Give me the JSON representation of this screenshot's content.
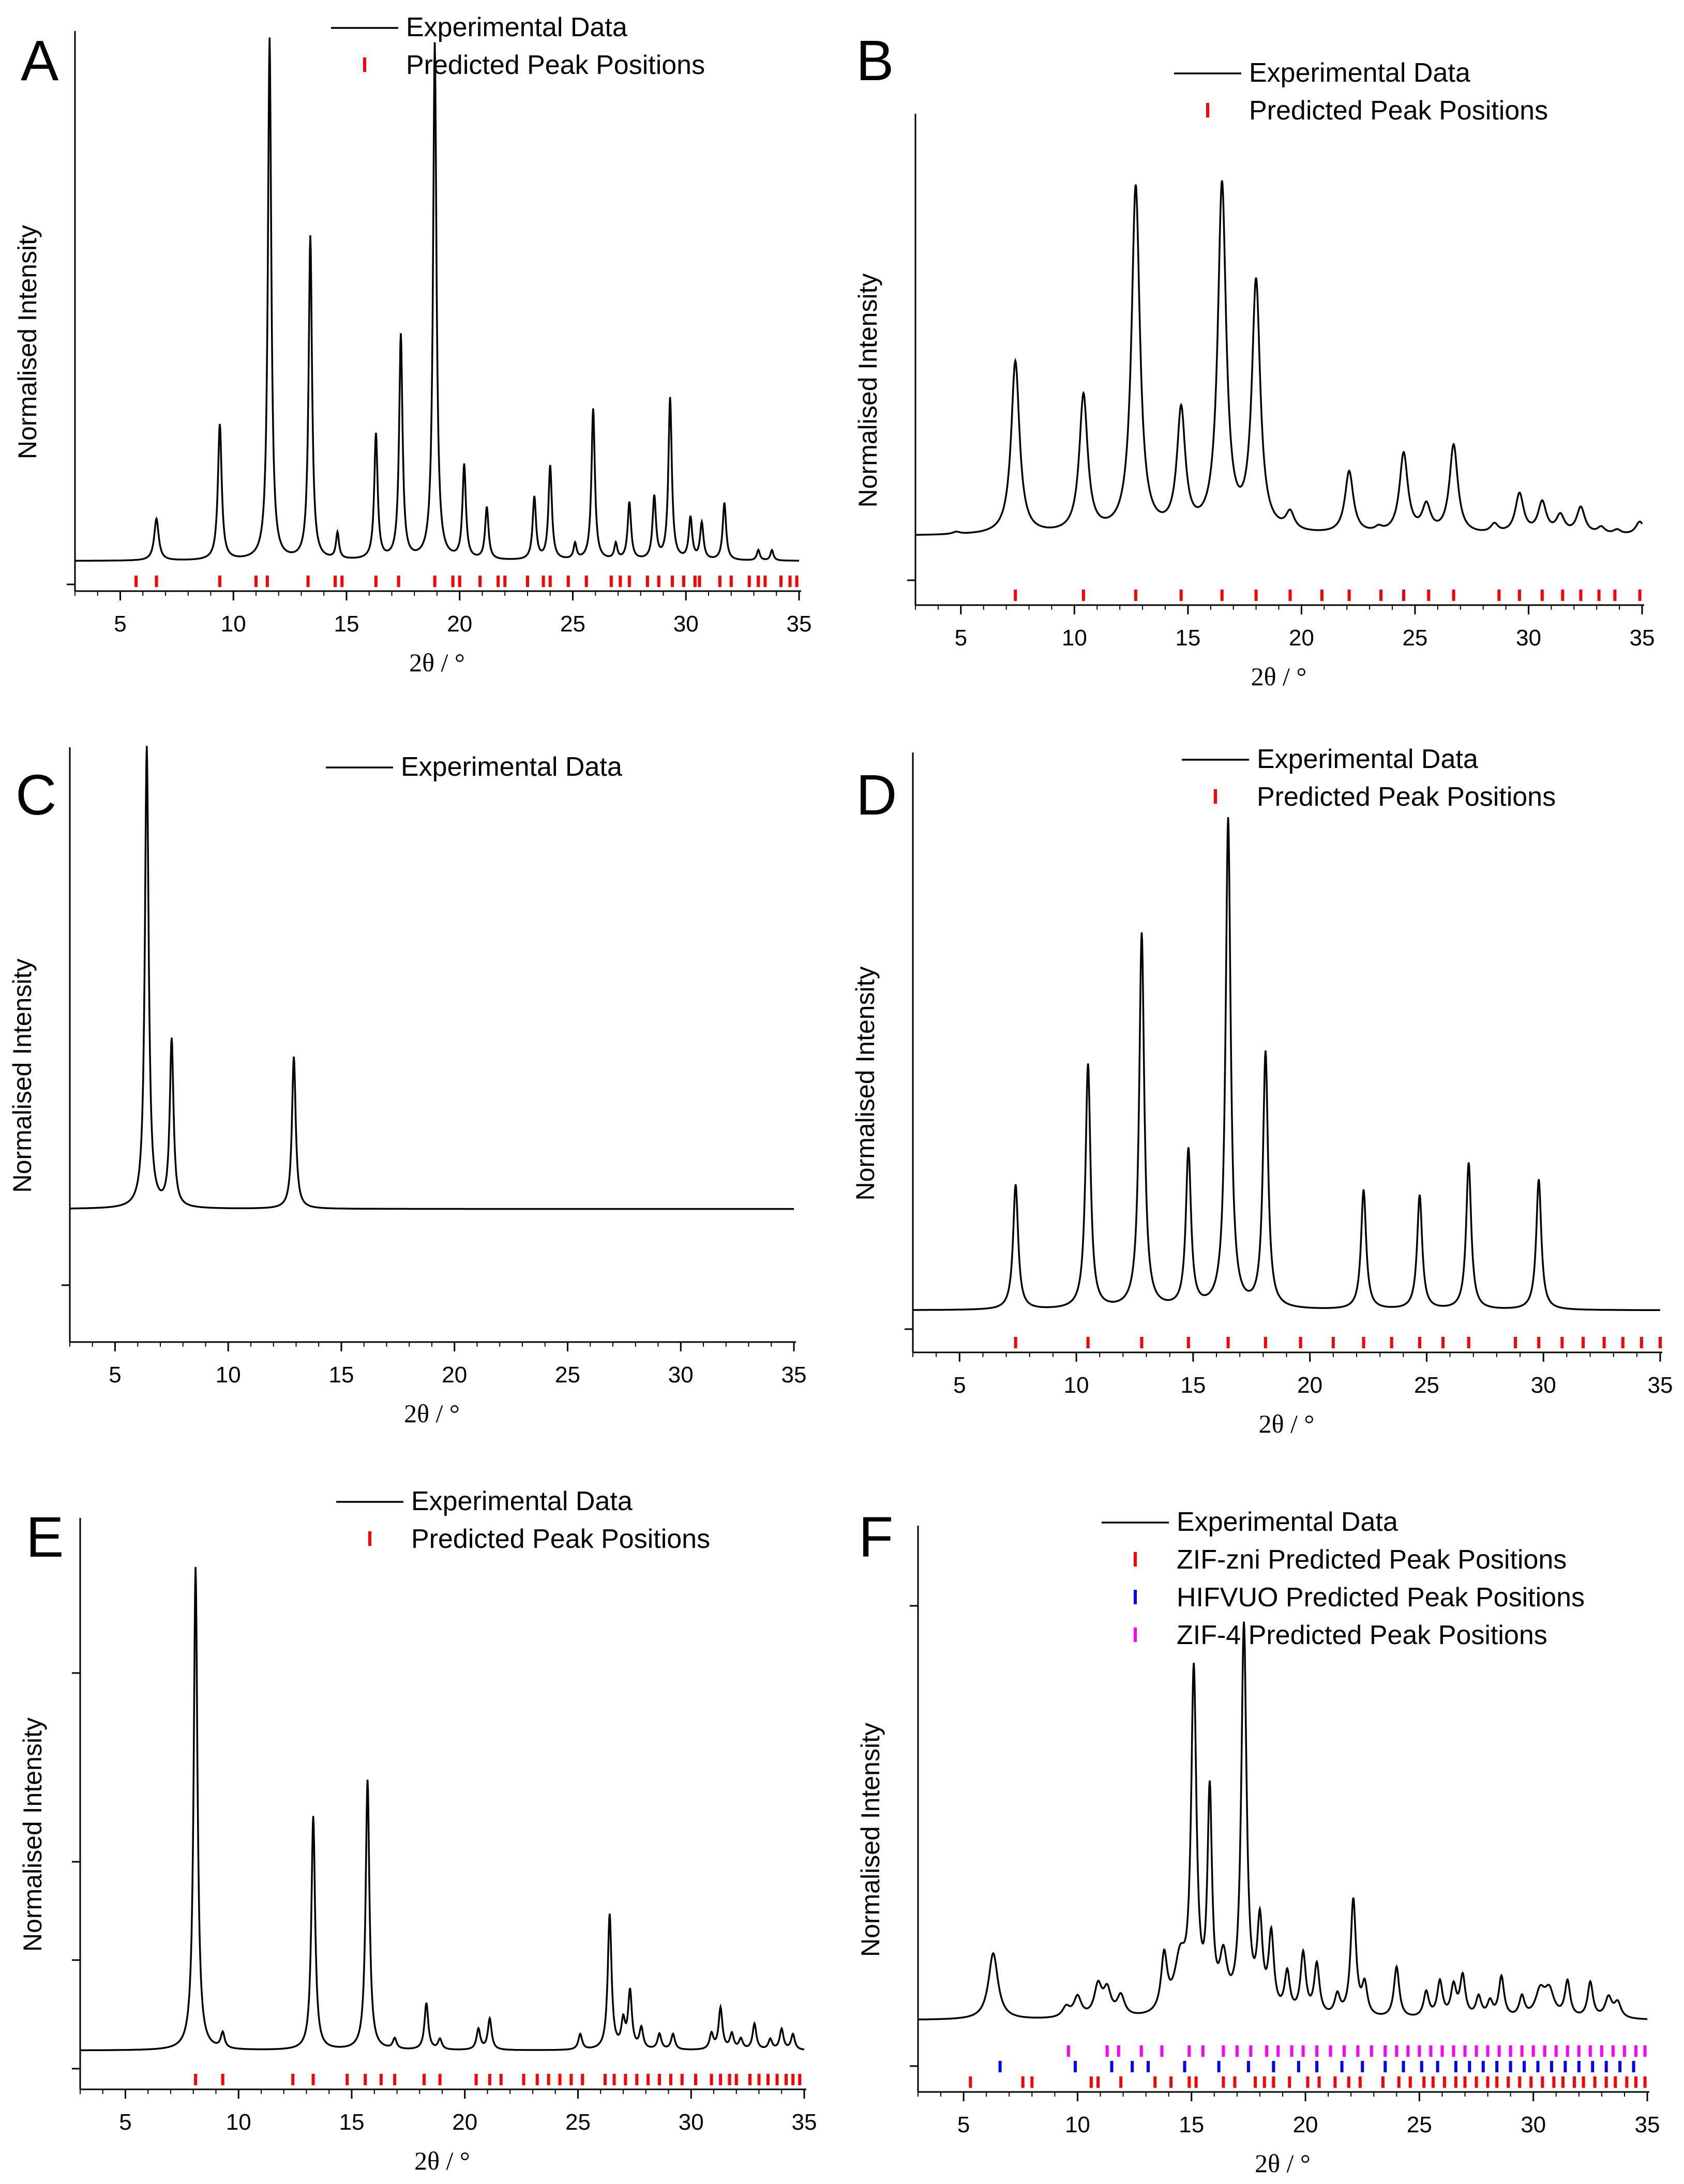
{
  "figure": {
    "description_free": true
  },
  "chart_data": [
    {
      "panel": "A",
      "type": "line",
      "xlabel": "2θ / °",
      "ylabel": "Normalised Intensity",
      "xlim": [
        3,
        35
      ],
      "ylim": [
        0,
        1.05
      ],
      "xticks": [
        5,
        10,
        15,
        20,
        25,
        30,
        35
      ],
      "legend": [
        "Experimental Data",
        "Predicted Peak Positions"
      ],
      "legend_position": "top-right",
      "series": [
        {
          "name": "Experimental Data",
          "baseline": 0.035,
          "peaks": [
            [
              6.6,
              0.08,
              0.12
            ],
            [
              9.4,
              0.26,
              0.1
            ],
            [
              11.6,
              1.0,
              0.09
            ],
            [
              13.4,
              0.62,
              0.09
            ],
            [
              14.6,
              0.05,
              0.08
            ],
            [
              16.3,
              0.24,
              0.09
            ],
            [
              17.4,
              0.43,
              0.09
            ],
            [
              18.9,
              0.99,
              0.09
            ],
            [
              20.2,
              0.18,
              0.09
            ],
            [
              21.2,
              0.1,
              0.09
            ],
            [
              23.3,
              0.12,
              0.09
            ],
            [
              24.0,
              0.18,
              0.09
            ],
            [
              25.1,
              0.03,
              0.08
            ],
            [
              25.9,
              0.29,
              0.09
            ],
            [
              26.9,
              0.03,
              0.08
            ],
            [
              27.5,
              0.11,
              0.09
            ],
            [
              28.6,
              0.12,
              0.09
            ],
            [
              29.3,
              0.31,
              0.09
            ],
            [
              30.2,
              0.08,
              0.09
            ],
            [
              30.7,
              0.07,
              0.09
            ],
            [
              31.7,
              0.11,
              0.09
            ],
            [
              33.2,
              0.02,
              0.08
            ],
            [
              33.8,
              0.02,
              0.08
            ]
          ]
        },
        {
          "name": "Predicted Peak Positions",
          "color": "#ff0000",
          "row": 0,
          "positions": [
            5.7,
            6.6,
            9.4,
            11.0,
            11.5,
            13.3,
            14.5,
            14.8,
            16.3,
            17.3,
            18.9,
            19.7,
            20.0,
            20.9,
            21.7,
            22.0,
            23.0,
            23.7,
            24.0,
            24.8,
            25.6,
            26.7,
            27.1,
            27.5,
            28.3,
            28.8,
            29.4,
            29.9,
            30.4,
            30.6,
            31.5,
            32.0,
            32.8,
            33.2,
            33.5,
            34.2,
            34.6,
            34.9
          ]
        }
      ]
    },
    {
      "panel": "B",
      "type": "line",
      "xlabel": "2θ / °",
      "ylabel": "Normalised Intensity",
      "xlim": [
        3,
        35
      ],
      "ylim": [
        0,
        1.05
      ],
      "xticks": [
        5,
        10,
        15,
        20,
        25,
        30,
        35
      ],
      "legend": [
        "Experimental Data",
        "Predicted Peak Positions"
      ],
      "legend_position": "top-right",
      "series": [
        {
          "name": "Experimental Data",
          "baseline": 0.1,
          "peaks": [
            [
              4.8,
              0.005,
              0.2
            ],
            [
              7.4,
              0.39,
              0.22
            ],
            [
              10.4,
              0.31,
              0.22
            ],
            [
              12.7,
              0.78,
              0.22
            ],
            [
              14.7,
              0.27,
              0.22
            ],
            [
              16.5,
              0.78,
              0.22
            ],
            [
              18.0,
              0.56,
              0.22
            ],
            [
              19.5,
              0.04,
              0.22
            ],
            [
              22.1,
              0.14,
              0.22
            ],
            [
              23.4,
              0.01,
              0.2
            ],
            [
              24.5,
              0.18,
              0.22
            ],
            [
              25.5,
              0.06,
              0.22
            ],
            [
              26.7,
              0.2,
              0.22
            ],
            [
              28.5,
              0.02,
              0.2
            ],
            [
              29.6,
              0.09,
              0.22
            ],
            [
              30.6,
              0.07,
              0.22
            ],
            [
              31.4,
              0.04,
              0.22
            ],
            [
              32.3,
              0.06,
              0.22
            ],
            [
              33.2,
              0.015,
              0.2
            ],
            [
              33.9,
              0.01,
              0.2
            ],
            [
              34.9,
              0.03,
              0.22
            ]
          ]
        },
        {
          "name": "Predicted Peak Positions",
          "color": "#ff0000",
          "row": 0,
          "positions": [
            7.4,
            10.4,
            12.7,
            14.7,
            16.5,
            18.0,
            19.5,
            20.9,
            22.1,
            23.5,
            24.5,
            25.6,
            26.7,
            28.7,
            29.6,
            30.6,
            31.5,
            32.3,
            33.1,
            33.8,
            34.9
          ]
        }
      ]
    },
    {
      "panel": "C",
      "type": "line",
      "xlabel": "2θ / °",
      "ylabel": "Normalised Intensity",
      "xlim": [
        3,
        35
      ],
      "ylim": [
        0,
        1.05
      ],
      "xticks": [
        5,
        10,
        15,
        20,
        25,
        30,
        35
      ],
      "legend": [
        "Experimental Data"
      ],
      "legend_position": "top-right",
      "series": [
        {
          "name": "Experimental Data",
          "baseline": 0.14,
          "peaks": [
            [
              6.4,
              0.91,
              0.1
            ],
            [
              7.5,
              0.33,
              0.1
            ],
            [
              12.9,
              0.3,
              0.1
            ]
          ]
        }
      ]
    },
    {
      "panel": "D",
      "type": "line",
      "xlabel": "2θ / °",
      "ylabel": "Normalised Intensity",
      "xlim": [
        3,
        35
      ],
      "ylim": [
        0,
        1.05
      ],
      "xticks": [
        5,
        10,
        15,
        20,
        25,
        30,
        35
      ],
      "legend": [
        "Experimental Data",
        "Predicted Peak Positions"
      ],
      "legend_position": "top-right",
      "series": [
        {
          "name": "Experimental Data",
          "baseline": 0.025,
          "peaks": [
            [
              7.4,
              0.23,
              0.13
            ],
            [
              10.5,
              0.45,
              0.13
            ],
            [
              12.8,
              0.69,
              0.13
            ],
            [
              14.8,
              0.29,
              0.13
            ],
            [
              16.5,
              0.9,
              0.13
            ],
            [
              18.1,
              0.47,
              0.13
            ],
            [
              22.3,
              0.22,
              0.13
            ],
            [
              24.7,
              0.21,
              0.13
            ],
            [
              26.8,
              0.27,
              0.13
            ],
            [
              29.8,
              0.24,
              0.13
            ]
          ]
        },
        {
          "name": "Predicted Peak Positions",
          "color": "#ff0000",
          "row": 0,
          "positions": [
            7.4,
            10.5,
            12.8,
            14.8,
            16.5,
            18.1,
            19.6,
            21.0,
            22.3,
            23.5,
            24.7,
            25.7,
            26.8,
            28.8,
            29.8,
            30.8,
            31.7,
            32.6,
            33.4,
            34.2,
            35.0
          ]
        }
      ]
    },
    {
      "panel": "E",
      "type": "line",
      "xlabel": "2θ / °",
      "ylabel": "Normalised Intensity",
      "xlim": [
        3,
        35
      ],
      "ylim": [
        0,
        1.05
      ],
      "xticks": [
        5,
        10,
        15,
        20,
        25,
        30,
        35
      ],
      "legend": [
        "Experimental Data",
        "Predicted Peak Positions"
      ],
      "legend_position": "top-right",
      "series": [
        {
          "name": "Experimental Data",
          "baseline": 0.025,
          "peaks": [
            [
              8.1,
              0.93,
              0.1
            ],
            [
              9.3,
              0.03,
              0.1
            ],
            [
              13.3,
              0.45,
              0.1
            ],
            [
              15.7,
              0.52,
              0.1
            ],
            [
              16.9,
              0.02,
              0.1
            ],
            [
              18.3,
              0.09,
              0.1
            ],
            [
              18.9,
              0.02,
              0.1
            ],
            [
              20.6,
              0.04,
              0.1
            ],
            [
              21.1,
              0.06,
              0.1
            ],
            [
              25.1,
              0.03,
              0.1
            ],
            [
              26.4,
              0.26,
              0.1
            ],
            [
              27.0,
              0.05,
              0.1
            ],
            [
              27.3,
              0.11,
              0.1
            ],
            [
              27.8,
              0.04,
              0.1
            ],
            [
              28.6,
              0.03,
              0.1
            ],
            [
              29.2,
              0.03,
              0.1
            ],
            [
              30.9,
              0.03,
              0.1
            ],
            [
              31.3,
              0.08,
              0.1
            ],
            [
              31.8,
              0.03,
              0.1
            ],
            [
              32.2,
              0.02,
              0.1
            ],
            [
              32.8,
              0.05,
              0.1
            ],
            [
              33.5,
              0.02,
              0.1
            ],
            [
              34.0,
              0.04,
              0.1
            ],
            [
              34.5,
              0.03,
              0.1
            ]
          ]
        },
        {
          "name": "Predicted Peak Positions",
          "color": "#ff0000",
          "row": 0,
          "positions": [
            8.1,
            9.3,
            12.4,
            13.3,
            14.8,
            15.6,
            16.3,
            16.9,
            18.2,
            18.9,
            20.5,
            21.1,
            21.6,
            22.6,
            23.2,
            23.7,
            24.2,
            24.7,
            25.2,
            26.2,
            26.6,
            27.1,
            27.6,
            28.1,
            28.6,
            29.1,
            29.6,
            30.2,
            30.9,
            31.3,
            31.7,
            32.0,
            32.6,
            33.0,
            33.4,
            33.8,
            34.2,
            34.5,
            34.8
          ]
        }
      ]
    },
    {
      "panel": "F",
      "type": "line",
      "xlabel": "2θ / °",
      "ylabel": "Normalised Intensity",
      "xlim": [
        3,
        35
      ],
      "ylim": [
        0,
        1.05
      ],
      "xticks": [
        5,
        10,
        15,
        20,
        25,
        30,
        35
      ],
      "legend": [
        "Experimental Data",
        "ZIF-zni Predicted Peak Positions",
        "HIFVUO Predicted Peak Positions",
        "ZIF-4 Predicted Peak Positions"
      ],
      "legend_position": "top-right",
      "series": [
        {
          "name": "Experimental Data",
          "baseline": 0.08,
          "peaks": [
            [
              6.3,
              0.13,
              0.25
            ],
            [
              9.5,
              0.02,
              0.2
            ],
            [
              10.0,
              0.04,
              0.2
            ],
            [
              10.9,
              0.06,
              0.2
            ],
            [
              11.3,
              0.05,
              0.2
            ],
            [
              11.9,
              0.04,
              0.2
            ],
            [
              13.8,
              0.11,
              0.16
            ],
            [
              14.5,
              0.1,
              0.3
            ],
            [
              15.1,
              0.66,
              0.14
            ],
            [
              15.8,
              0.42,
              0.12
            ],
            [
              16.4,
              0.1,
              0.2
            ],
            [
              17.3,
              0.76,
              0.14
            ],
            [
              18.0,
              0.17,
              0.14
            ],
            [
              18.5,
              0.15,
              0.14
            ],
            [
              19.2,
              0.08,
              0.14
            ],
            [
              19.9,
              0.12,
              0.14
            ],
            [
              20.5,
              0.1,
              0.14
            ],
            [
              21.4,
              0.04,
              0.14
            ],
            [
              22.1,
              0.23,
              0.14
            ],
            [
              22.6,
              0.06,
              0.14
            ],
            [
              24.0,
              0.1,
              0.14
            ],
            [
              25.3,
              0.05,
              0.14
            ],
            [
              25.9,
              0.07,
              0.14
            ],
            [
              26.5,
              0.06,
              0.14
            ],
            [
              26.9,
              0.08,
              0.14
            ],
            [
              27.6,
              0.04,
              0.14
            ],
            [
              28.1,
              0.03,
              0.14
            ],
            [
              28.6,
              0.08,
              0.14
            ],
            [
              29.5,
              0.04,
              0.14
            ],
            [
              30.3,
              0.05,
              0.25
            ],
            [
              30.7,
              0.05,
              0.25
            ],
            [
              31.5,
              0.07,
              0.14
            ],
            [
              32.5,
              0.07,
              0.14
            ],
            [
              33.3,
              0.04,
              0.18
            ],
            [
              33.7,
              0.03,
              0.18
            ]
          ]
        },
        {
          "name": "ZIF-zni Predicted Peak Positions",
          "color": "#ff0000",
          "row": 0,
          "positions": [
            5.3,
            7.6,
            8.0,
            10.6,
            10.9,
            11.9,
            13.4,
            14.1,
            14.9,
            15.2,
            16.4,
            16.9,
            17.8,
            18.2,
            18.6,
            19.3,
            20.1,
            20.6,
            21.3,
            21.9,
            22.4,
            23.4,
            24.1,
            24.6,
            25.2,
            25.6,
            26.1,
            26.6,
            27.0,
            27.5,
            28.0,
            28.4,
            28.9,
            29.4,
            29.9,
            30.4,
            30.9,
            31.3,
            31.8,
            32.2,
            32.7,
            33.2,
            33.6,
            34.1,
            34.5,
            34.9
          ]
        },
        {
          "name": "HIFVUO Predicted Peak Positions",
          "color": "#0000ff",
          "row": 1,
          "positions": [
            6.6,
            9.9,
            11.5,
            12.4,
            13.1,
            14.7,
            16.2,
            17.5,
            18.6,
            19.7,
            20.5,
            21.6,
            22.5,
            23.5,
            24.3,
            25.1,
            25.8,
            26.6,
            27.2,
            27.8,
            28.4,
            29.0,
            29.6,
            30.2,
            30.8,
            31.4,
            32.0,
            32.6,
            33.2,
            33.8,
            34.4
          ]
        },
        {
          "name": "ZIF-4 Predicted Peak Positions",
          "color": "#ff00ff",
          "row": 2,
          "positions": [
            9.6,
            11.3,
            11.8,
            12.8,
            13.7,
            14.9,
            15.5,
            16.4,
            17.0,
            17.6,
            18.3,
            18.8,
            19.4,
            19.9,
            20.5,
            21.1,
            21.7,
            22.3,
            22.9,
            23.5,
            24.0,
            24.5,
            25.0,
            25.5,
            26.0,
            26.5,
            27.0,
            27.5,
            28.0,
            28.5,
            29.0,
            29.5,
            30.0,
            30.5,
            31.0,
            31.5,
            32.0,
            32.5,
            33.0,
            33.5,
            34.0,
            34.5,
            34.9
          ]
        }
      ]
    }
  ]
}
